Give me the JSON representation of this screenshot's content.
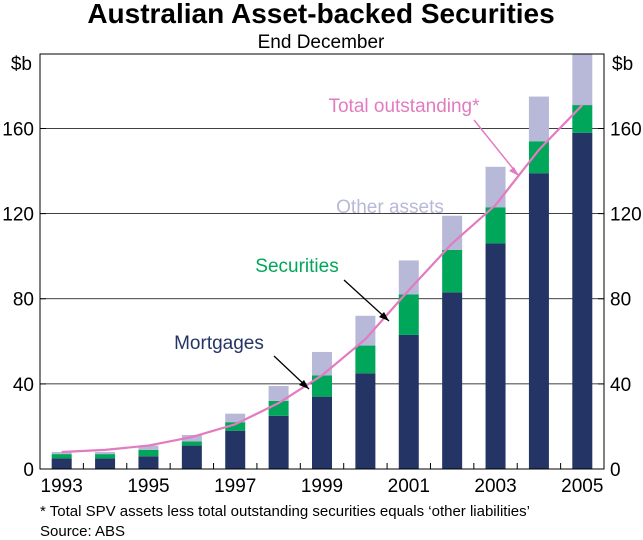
{
  "chart_data": {
    "type": "bar",
    "stacked": true,
    "title": "Australian Asset-backed Securities",
    "subtitle": "End December",
    "ylabel_left": "$b",
    "ylabel_right": "$b",
    "ylim": [
      0,
      195
    ],
    "yticks": [
      0,
      40,
      80,
      120,
      160
    ],
    "xlim": [
      1992.5,
      2005.5
    ],
    "categories": [
      1993,
      1994,
      1995,
      1996,
      1997,
      1998,
      1999,
      2000,
      2001,
      2002,
      2003,
      2004,
      2005
    ],
    "xtick_labels": [
      "1993",
      "1995",
      "1997",
      "1999",
      "2001",
      "2003",
      "2005"
    ],
    "grid": "horizontal",
    "series": [
      {
        "name": "Mortgages",
        "color": "#243565",
        "values": [
          5,
          5,
          6,
          11,
          18,
          25,
          34,
          45,
          63,
          83,
          106,
          139,
          158
        ]
      },
      {
        "name": "Securities",
        "color": "#00a65a",
        "values": [
          2,
          2,
          3,
          2,
          4,
          7,
          10,
          13,
          19,
          20,
          17,
          15,
          13
        ]
      },
      {
        "name": "Other assets",
        "color": "#b8b8d8",
        "values": [
          1,
          1,
          2,
          3,
          4,
          7,
          11,
          14,
          16,
          16,
          19,
          21,
          24
        ]
      }
    ],
    "line_series": {
      "name": "Total outstanding*",
      "color": "#e27bbf",
      "values": [
        8,
        9,
        11,
        15,
        21,
        31,
        44,
        61,
        84,
        106,
        124,
        150,
        171
      ]
    },
    "annotations": [
      {
        "text": "Total outstanding*",
        "color": "#e27bbf"
      },
      {
        "text": "Other assets",
        "color": "#b8b8d8"
      },
      {
        "text": "Securities",
        "color": "#00a65a"
      },
      {
        "text": "Mortgages",
        "color": "#243565"
      }
    ]
  },
  "footnote": "*   Total SPV assets less total outstanding securities equals ‘other liabilities’",
  "source": "Source: ABS"
}
